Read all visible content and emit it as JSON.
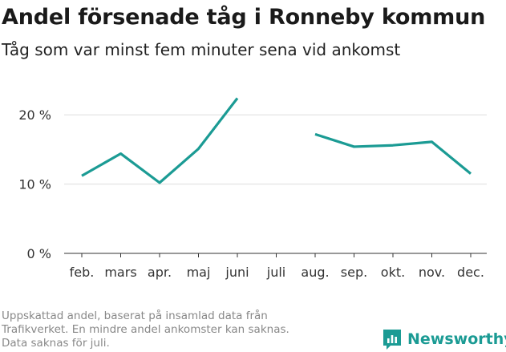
{
  "header": {
    "title": "Andel försenade tåg i Ronneby kommun",
    "subtitle": "Tåg som var minst fem minuter sena vid ankomst"
  },
  "footnote": {
    "lines": [
      "Uppskattad andel, baserat på insamlad data från",
      "Trafikverket. En mindre andel ankomster kan saknas.",
      "Data saknas för juli."
    ]
  },
  "brand": {
    "name": "Newsworthy",
    "icon": "newsworthy-logo-icon",
    "color": "#1b9b94"
  },
  "chart_data": {
    "type": "line",
    "title": "Andel försenade tåg i Ronneby kommun",
    "subtitle": "Tåg som var minst fem minuter sena vid ankomst",
    "xlabel": "",
    "ylabel": "",
    "categories": [
      "feb.",
      "mars",
      "apr.",
      "maj",
      "juni",
      "juli",
      "aug.",
      "sep.",
      "okt.",
      "nov.",
      "dec."
    ],
    "series": [
      {
        "name": "Andel försenade tåg",
        "values": [
          11.2,
          14.4,
          10.2,
          15.1,
          22.4,
          null,
          17.2,
          15.4,
          15.6,
          16.1,
          11.5
        ],
        "color": "#1b9b94"
      }
    ],
    "ylim": [
      0,
      25
    ],
    "yticks": [
      0,
      10,
      20
    ],
    "ytick_labels": [
      "0 %",
      "10 %",
      "20 %"
    ],
    "grid": true,
    "legend": "none"
  }
}
